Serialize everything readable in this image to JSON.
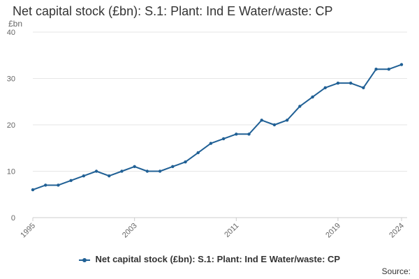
{
  "chart_data": {
    "type": "line",
    "title": "Net capital stock (£bn): S.1: Plant: Ind E Water/waste: CP",
    "ylabel": "£bn",
    "xlabel": "",
    "ylim": [
      0,
      40
    ],
    "yticks": [
      0,
      10,
      20,
      30,
      40
    ],
    "xlim": [
      1995,
      2024
    ],
    "xticks": [
      "1995",
      "2003",
      "2011",
      "2019",
      "2024"
    ],
    "grid": true,
    "legend_position": "bottom-center",
    "series": [
      {
        "name": "Net capital stock (£bn): S.1: Plant: Ind E Water/waste: CP",
        "color": "#206095",
        "x": [
          1995,
          1996,
          1997,
          1998,
          1999,
          2000,
          2001,
          2002,
          2003,
          2004,
          2005,
          2006,
          2007,
          2008,
          2009,
          2010,
          2011,
          2012,
          2013,
          2014,
          2015,
          2016,
          2017,
          2018,
          2019,
          2020,
          2021,
          2022,
          2023,
          2024
        ],
        "values": [
          6,
          7,
          7,
          8,
          9,
          10,
          9,
          10,
          11,
          10,
          10,
          11,
          12,
          14,
          16,
          17,
          18,
          18,
          21,
          20,
          21,
          24,
          26,
          28,
          29,
          29,
          28,
          32,
          32,
          33
        ]
      }
    ]
  },
  "source_label": "Source:"
}
